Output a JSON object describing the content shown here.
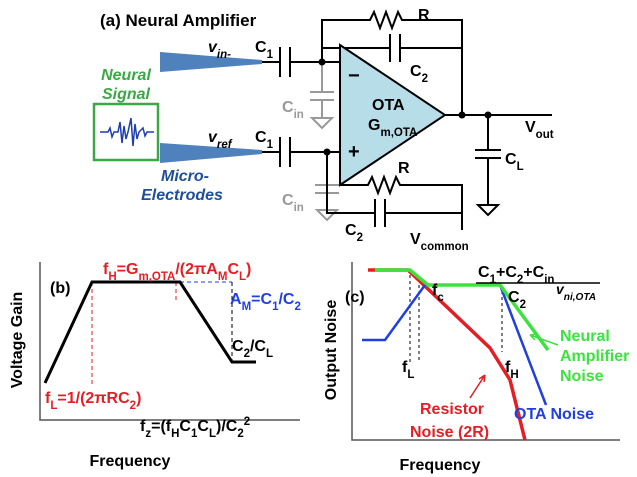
{
  "panel_a": {
    "title": [
      {
        "text": "(a) Neural Amplifier"
      }
    ],
    "neural": [
      {
        "text": "Neural"
      }
    ],
    "signal": [
      {
        "text": "Signal"
      }
    ],
    "micro": [
      {
        "text": "Micro-"
      }
    ],
    "electrodes": [
      {
        "text": "Electrodes"
      }
    ],
    "v_in": [
      {
        "text": "v"
      },
      {
        "sub": "in-"
      }
    ],
    "v_ref": [
      {
        "text": "v"
      },
      {
        "sub": "ref"
      }
    ],
    "c1_top": [
      {
        "text": "C"
      },
      {
        "sub": "1"
      }
    ],
    "c1_bot": [
      {
        "text": "C"
      },
      {
        "sub": "1"
      }
    ],
    "cin_top": [
      {
        "text": "C"
      },
      {
        "sub": "in"
      }
    ],
    "cin_bot": [
      {
        "text": "C"
      },
      {
        "sub": "in"
      }
    ],
    "r_top": [
      {
        "text": "R"
      }
    ],
    "c2_top": [
      {
        "text": "C"
      },
      {
        "sub": "2"
      }
    ],
    "r_bot": [
      {
        "text": "R"
      }
    ],
    "c2_bot": [
      {
        "text": "C"
      },
      {
        "sub": "2"
      }
    ],
    "minus": [
      {
        "text": "−"
      }
    ],
    "plus": [
      {
        "text": "+"
      }
    ],
    "ota": [
      {
        "text": "OTA"
      }
    ],
    "gm": [
      {
        "text": "G"
      },
      {
        "sub": "m,OTA"
      }
    ],
    "v_out": [
      {
        "text": "V"
      },
      {
        "sub": "out"
      }
    ],
    "c_l": [
      {
        "text": "C"
      },
      {
        "sub": "L"
      }
    ],
    "v_common": [
      {
        "text": "V"
      },
      {
        "sub": "common"
      }
    ]
  },
  "panel_b": {
    "label": [
      {
        "text": "(b)"
      }
    ],
    "y_axis": [
      {
        "text": "Voltage Gain"
      }
    ],
    "x_axis": [
      {
        "text": "Frequency"
      }
    ],
    "f_h": [
      {
        "text": "f"
      },
      {
        "sub": "H"
      },
      {
        "text": "=G"
      },
      {
        "sub": "m,OTA"
      },
      {
        "text": "/(2πA"
      },
      {
        "sub": "M"
      },
      {
        "text": "C"
      },
      {
        "sub": "L"
      },
      {
        "text": ")"
      }
    ],
    "a_m": [
      {
        "text": "A"
      },
      {
        "sub": "M"
      },
      {
        "text": "=C"
      },
      {
        "sub": "1"
      },
      {
        "text": "/C"
      },
      {
        "sub": "2"
      }
    ],
    "c2_cl": [
      {
        "text": "C"
      },
      {
        "sub": "2"
      },
      {
        "text": "/C"
      },
      {
        "sub": "L"
      }
    ],
    "f_l": [
      {
        "text": "f"
      },
      {
        "sub": "L"
      },
      {
        "text": "=1/(2πRC"
      },
      {
        "sub": "2"
      },
      {
        "text": ")"
      }
    ],
    "f_z": [
      {
        "text": "f"
      },
      {
        "sub": "z"
      },
      {
        "text": "=(f"
      },
      {
        "sub": "H"
      },
      {
        "text": "C"
      },
      {
        "sub": "1"
      },
      {
        "text": "C"
      },
      {
        "sub": "L"
      },
      {
        "text": ")/C"
      },
      {
        "sub": "2"
      },
      {
        "sup": "2"
      }
    ]
  },
  "panel_c": {
    "label": [
      {
        "text": "(c)"
      }
    ],
    "y_axis": [
      {
        "text": "Output Noise"
      }
    ],
    "x_axis": [
      {
        "text": "Frequency"
      }
    ],
    "f_c": [
      {
        "text": "f"
      },
      {
        "sub": "c"
      }
    ],
    "f_l": [
      {
        "text": "f"
      },
      {
        "sub": "L"
      }
    ],
    "f_h": [
      {
        "text": "f"
      },
      {
        "sub": "H"
      }
    ],
    "numerator": [
      {
        "text": "C"
      },
      {
        "sub": "1"
      },
      {
        "text": "+C"
      },
      {
        "sub": "2"
      },
      {
        "text": "+C"
      },
      {
        "sub": "in"
      }
    ],
    "denominator": [
      {
        "text": "C"
      },
      {
        "sub": "2"
      }
    ],
    "v_ni": [
      {
        "text": "v"
      },
      {
        "sub": "ni,OTA"
      }
    ],
    "neural": [
      {
        "text": "Neural"
      }
    ],
    "amplifier": [
      {
        "text": "Amplifier"
      }
    ],
    "noise": [
      {
        "text": "Noise"
      }
    ],
    "ota_noise": [
      {
        "text": "OTA Noise"
      }
    ],
    "resistor": [
      {
        "text": "Resistor"
      }
    ],
    "noise_2r": [
      {
        "text": "Noise (2R)"
      }
    ]
  }
}
